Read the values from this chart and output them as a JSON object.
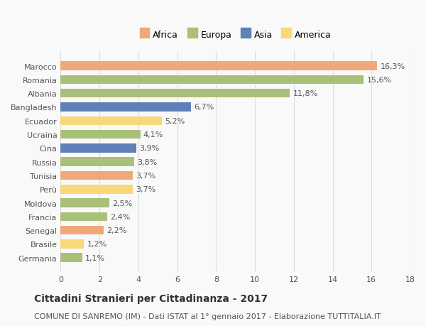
{
  "categories": [
    "Marocco",
    "Romania",
    "Albania",
    "Bangladesh",
    "Ecuador",
    "Ucraina",
    "Cina",
    "Russia",
    "Tunisia",
    "Perù",
    "Moldova",
    "Francia",
    "Senegal",
    "Brasile",
    "Germania"
  ],
  "values": [
    16.3,
    15.6,
    11.8,
    6.7,
    5.2,
    4.1,
    3.9,
    3.8,
    3.7,
    3.7,
    2.5,
    2.4,
    2.2,
    1.2,
    1.1
  ],
  "labels": [
    "16,3%",
    "15,6%",
    "11,8%",
    "6,7%",
    "5,2%",
    "4,1%",
    "3,9%",
    "3,8%",
    "3,7%",
    "3,7%",
    "2,5%",
    "2,4%",
    "2,2%",
    "1,2%",
    "1,1%"
  ],
  "continents": [
    "Africa",
    "Europa",
    "Europa",
    "Asia",
    "America",
    "Europa",
    "Asia",
    "Europa",
    "Africa",
    "America",
    "Europa",
    "Europa",
    "Africa",
    "America",
    "Europa"
  ],
  "colors": {
    "Africa": "#F0A878",
    "Europa": "#A8C078",
    "Asia": "#6080B8",
    "America": "#F8D878"
  },
  "legend_order": [
    "Africa",
    "Europa",
    "Asia",
    "America"
  ],
  "title": "Cittadini Stranieri per Cittadinanza - 2017",
  "subtitle": "COMUNE DI SANREMO (IM) - Dati ISTAT al 1° gennaio 2017 - Elaborazione TUTTITALIA.IT",
  "xlim": [
    0,
    18
  ],
  "xticks": [
    0,
    2,
    4,
    6,
    8,
    10,
    12,
    14,
    16,
    18
  ],
  "background_color": "#f9f9f9",
  "grid_color": "#dddddd",
  "bar_height": 0.65,
  "title_fontsize": 10,
  "subtitle_fontsize": 8,
  "label_fontsize": 8,
  "tick_fontsize": 8,
  "legend_fontsize": 9
}
